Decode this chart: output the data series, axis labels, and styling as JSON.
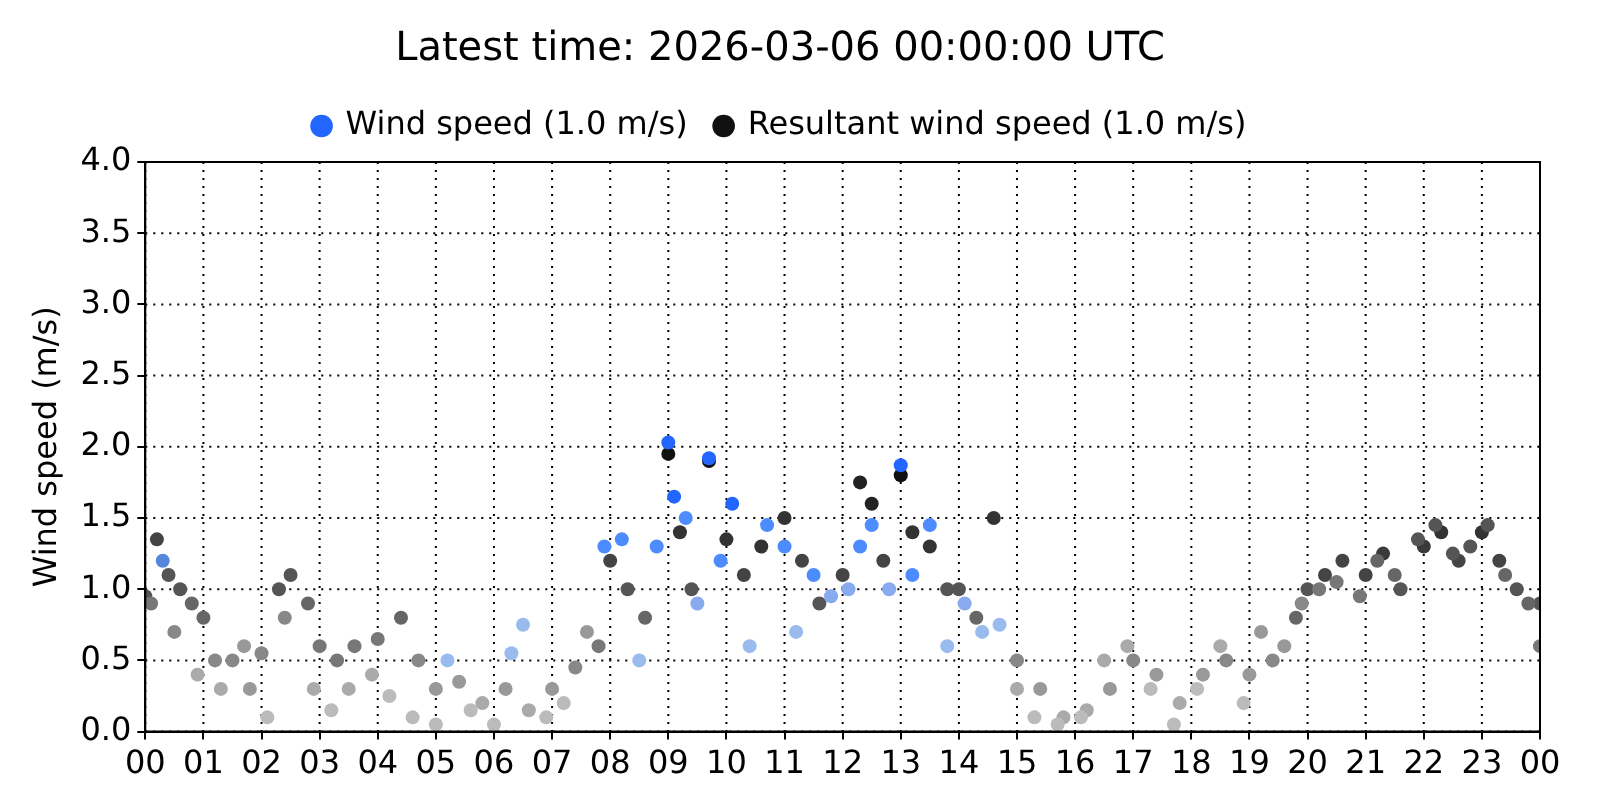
{
  "chart_data": {
    "type": "scatter",
    "title": "Latest time: 2026-03-06 00:00:00 UTC",
    "ylabel": "Wind speed (m/s)",
    "xlim": [
      0,
      24
    ],
    "xticks": [
      {
        "value": 0,
        "label": "00"
      },
      {
        "value": 1,
        "label": "01"
      },
      {
        "value": 2,
        "label": "02"
      },
      {
        "value": 3,
        "label": "03"
      },
      {
        "value": 4,
        "label": "04"
      },
      {
        "value": 5,
        "label": "05"
      },
      {
        "value": 6,
        "label": "06"
      },
      {
        "value": 7,
        "label": "07"
      },
      {
        "value": 8,
        "label": "08"
      },
      {
        "value": 9,
        "label": "09"
      },
      {
        "value": 10,
        "label": "10"
      },
      {
        "value": 11,
        "label": "11"
      },
      {
        "value": 12,
        "label": "12"
      },
      {
        "value": 13,
        "label": "13"
      },
      {
        "value": 14,
        "label": "14"
      },
      {
        "value": 15,
        "label": "15"
      },
      {
        "value": 16,
        "label": "16"
      },
      {
        "value": 17,
        "label": "17"
      },
      {
        "value": 18,
        "label": "18"
      },
      {
        "value": 19,
        "label": "19"
      },
      {
        "value": 20,
        "label": "20"
      },
      {
        "value": 21,
        "label": "21"
      },
      {
        "value": 22,
        "label": "22"
      },
      {
        "value": 23,
        "label": "23"
      },
      {
        "value": 24,
        "label": "00"
      }
    ],
    "ylim": [
      0,
      4
    ],
    "yticks": [
      {
        "value": 0,
        "label": "0.0"
      },
      {
        "value": 0.5,
        "label": "0.5"
      },
      {
        "value": 1,
        "label": "1.0"
      },
      {
        "value": 1.5,
        "label": "1.5"
      },
      {
        "value": 2,
        "label": "2.0"
      },
      {
        "value": 2.5,
        "label": "2.5"
      },
      {
        "value": 3,
        "label": "3.0"
      },
      {
        "value": 3.5,
        "label": "3.5"
      },
      {
        "value": 4,
        "label": "4.0"
      }
    ],
    "grid": true,
    "legend": "top",
    "marker": "circle",
    "series": [
      {
        "name": "Wind speed (1.0 m/s)",
        "color": "#2266ff",
        "x": [
          0.1,
          0.3,
          0.5,
          0.9,
          1.3,
          1.7,
          2.1,
          2.4,
          2.9,
          3.2,
          3.5,
          3.9,
          4.2,
          4.6,
          5.0,
          5.2,
          5.6,
          6.0,
          6.3,
          6.5,
          6.9,
          7.2,
          7.6,
          7.9,
          8.2,
          8.5,
          8.8,
          9.0,
          9.1,
          9.3,
          9.5,
          9.7,
          9.9,
          10.1,
          10.4,
          10.7,
          11.0,
          11.2,
          11.5,
          11.8,
          12.1,
          12.3,
          12.5,
          12.8,
          13.0,
          13.2,
          13.5,
          13.8,
          14.1,
          14.4,
          14.7,
          15.0,
          15.3,
          15.7,
          16.1,
          16.5,
          16.9,
          17.3,
          17.7,
          18.1,
          18.5,
          18.9,
          19.2,
          19.6,
          19.9,
          20.2,
          20.5,
          20.9,
          21.2,
          21.5,
          21.9,
          22.2,
          22.5,
          22.8,
          23.1,
          23.4,
          23.8,
          24.0
        ],
        "values": [
          0.9,
          1.2,
          0.7,
          0.4,
          0.3,
          0.6,
          0.1,
          0.8,
          0.3,
          0.15,
          0.3,
          0.4,
          0.25,
          0.1,
          0.05,
          0.5,
          0.15,
          0.05,
          0.55,
          0.75,
          0.1,
          0.2,
          0.7,
          1.3,
          1.35,
          0.5,
          1.3,
          2.03,
          1.65,
          1.5,
          0.9,
          1.92,
          1.2,
          1.6,
          0.6,
          1.45,
          1.3,
          0.7,
          1.1,
          0.95,
          1.0,
          1.3,
          1.45,
          1.0,
          1.87,
          1.1,
          1.45,
          0.6,
          0.9,
          0.7,
          0.75,
          0.3,
          0.1,
          0.05,
          0.1,
          0.5,
          0.6,
          0.3,
          0.05,
          0.3,
          0.6,
          0.2,
          0.7,
          0.6,
          0.9,
          1.0,
          1.05,
          0.95,
          1.2,
          1.1,
          1.35,
          1.45,
          1.25,
          1.3,
          1.45,
          1.1,
          0.9,
          0.6
        ],
        "colors": [
          "#777777",
          "#5588dd",
          "#888888",
          "#aaaaaa",
          "#aaaaaa",
          "#999999",
          "#bbbbbb",
          "#888888",
          "#aaaaaa",
          "#bbbbbb",
          "#aaaaaa",
          "#aaaaaa",
          "#bbbbbb",
          "#bbbbbb",
          "#bbbbbb",
          "#99bbee",
          "#bbbbbb",
          "#bbbbbb",
          "#99bbee",
          "#99bbee",
          "#bbbbbb",
          "#bbbbbb",
          "#999999",
          "#4d8cff",
          "#4d8cff",
          "#99bbee",
          "#4d8cff",
          "#2266ff",
          "#2266ff",
          "#4d8cff",
          "#88aaee",
          "#2266ff",
          "#4d8cff",
          "#2266ff",
          "#99bbee",
          "#4d8cff",
          "#4d8cff",
          "#99bbee",
          "#4d8cff",
          "#88aaee",
          "#88aaee",
          "#4d8cff",
          "#4d8cff",
          "#88aaee",
          "#2266ff",
          "#4d8cff",
          "#4d8cff",
          "#99bbee",
          "#88aaee",
          "#99bbee",
          "#99bbee",
          "#aaaaaa",
          "#bbbbbb",
          "#bbbbbb",
          "#bbbbbb",
          "#aaaaaa",
          "#aaaaaa",
          "#bbbbbb",
          "#bbbbbb",
          "#bbbbbb",
          "#aaaaaa",
          "#bbbbbb",
          "#999999",
          "#999999",
          "#888888",
          "#777777",
          "#777777",
          "#777777",
          "#666666",
          "#666666",
          "#555555",
          "#555555",
          "#555555",
          "#555555",
          "#555555",
          "#666666",
          "#666666",
          "#777777"
        ]
      },
      {
        "name": "Resultant wind speed (1.0 m/s)",
        "color": "#111111",
        "x": [
          0.0,
          0.2,
          0.4,
          0.6,
          0.8,
          1.0,
          1.2,
          1.5,
          1.8,
          2.0,
          2.3,
          2.5,
          2.8,
          3.0,
          3.3,
          3.6,
          4.0,
          4.4,
          4.7,
          5.0,
          5.4,
          5.8,
          6.2,
          6.6,
          7.0,
          7.4,
          7.8,
          8.0,
          8.3,
          8.6,
          9.0,
          9.2,
          9.4,
          9.7,
          10.0,
          10.3,
          10.6,
          11.0,
          11.3,
          11.6,
          12.0,
          12.3,
          12.5,
          12.7,
          13.0,
          13.2,
          13.5,
          13.8,
          14.0,
          14.3,
          14.6,
          15.0,
          15.4,
          15.8,
          16.2,
          16.6,
          17.0,
          17.4,
          17.8,
          18.2,
          18.6,
          19.0,
          19.4,
          19.8,
          20.0,
          20.3,
          20.6,
          21.0,
          21.3,
          21.6,
          22.0,
          22.3,
          22.6,
          23.0,
          23.3,
          23.6,
          24.0
        ],
        "values": [
          0.95,
          1.35,
          1.1,
          1.0,
          0.9,
          0.8,
          0.5,
          0.5,
          0.3,
          0.55,
          1.0,
          1.1,
          0.9,
          0.6,
          0.5,
          0.6,
          0.65,
          0.8,
          0.5,
          0.3,
          0.35,
          0.2,
          0.3,
          0.15,
          0.3,
          0.45,
          0.6,
          1.2,
          1.0,
          0.8,
          1.95,
          1.4,
          1.0,
          1.9,
          1.35,
          1.1,
          1.3,
          1.5,
          1.2,
          0.9,
          1.1,
          1.75,
          1.6,
          1.2,
          1.8,
          1.4,
          1.3,
          1.0,
          1.0,
          0.8,
          1.5,
          0.5,
          0.3,
          0.1,
          0.15,
          0.3,
          0.5,
          0.4,
          0.2,
          0.4,
          0.5,
          0.4,
          0.5,
          0.8,
          1.0,
          1.1,
          1.2,
          1.1,
          1.25,
          1.0,
          1.3,
          1.4,
          1.2,
          1.4,
          1.2,
          1.0,
          0.9
        ],
        "colors": [
          "#555555",
          "#444444",
          "#555555",
          "#555555",
          "#666666",
          "#666666",
          "#888888",
          "#888888",
          "#999999",
          "#888888",
          "#555555",
          "#555555",
          "#666666",
          "#777777",
          "#777777",
          "#777777",
          "#777777",
          "#666666",
          "#888888",
          "#999999",
          "#999999",
          "#aaaaaa",
          "#999999",
          "#aaaaaa",
          "#999999",
          "#888888",
          "#777777",
          "#444444",
          "#555555",
          "#666666",
          "#111111",
          "#333333",
          "#555555",
          "#111111",
          "#333333",
          "#444444",
          "#333333",
          "#333333",
          "#444444",
          "#555555",
          "#444444",
          "#222222",
          "#222222",
          "#444444",
          "#111111",
          "#333333",
          "#333333",
          "#555555",
          "#555555",
          "#666666",
          "#333333",
          "#888888",
          "#999999",
          "#aaaaaa",
          "#aaaaaa",
          "#999999",
          "#888888",
          "#999999",
          "#aaaaaa",
          "#999999",
          "#888888",
          "#999999",
          "#888888",
          "#666666",
          "#555555",
          "#444444",
          "#444444",
          "#444444",
          "#3a3a3a",
          "#555555",
          "#3a3a3a",
          "#333333",
          "#444444",
          "#333333",
          "#444444",
          "#555555",
          "#555555"
        ]
      }
    ]
  }
}
